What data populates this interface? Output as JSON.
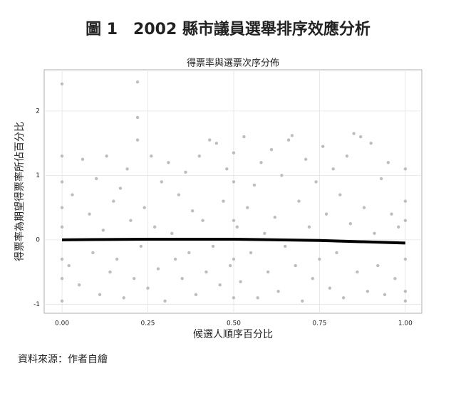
{
  "chart_data": {
    "type": "scatter",
    "title": "圖 1　2002 縣市議員選舉排序效應分析",
    "subtitle": "得票率與選票次序分佈",
    "xlabel": "候選人順序百分比",
    "ylabel": "得票率為期望得票率所佔百分比",
    "source": "資料來源：作者自繪",
    "xlim": [
      -0.052,
      1.048
    ],
    "ylim": [
      -1.14,
      2.64
    ],
    "xticks": [
      {
        "value": 0,
        "label": "0.00"
      },
      {
        "value": 0.25,
        "label": "0.25"
      },
      {
        "value": 0.5,
        "label": "0.50"
      },
      {
        "value": 0.75,
        "label": "0.75"
      },
      {
        "value": 1,
        "label": "1.00"
      }
    ],
    "yticks": [
      -1,
      0,
      1,
      2
    ],
    "grid": true,
    "series": [
      {
        "type": "scatter",
        "color": "#bdbdbd",
        "x": [
          0,
          0,
          0,
          0,
          0,
          0,
          0,
          0,
          0.02,
          0.03,
          0.05,
          0.06,
          0.08,
          0.09,
          0.1,
          0.11,
          0.12,
          0.13,
          0.14,
          0.15,
          0.16,
          0.17,
          0.18,
          0.19,
          0.2,
          0.21,
          0.22,
          0.22,
          0.22,
          0.23,
          0.24,
          0.25,
          0.26,
          0.27,
          0.28,
          0.29,
          0.3,
          0.31,
          0.32,
          0.33,
          0.34,
          0.35,
          0.36,
          0.37,
          0.38,
          0.39,
          0.4,
          0.41,
          0.42,
          0.43,
          0.44,
          0.45,
          0.46,
          0.47,
          0.48,
          0.49,
          0.5,
          0.5,
          0.5,
          0.5,
          0.5,
          0.51,
          0.52,
          0.53,
          0.54,
          0.55,
          0.56,
          0.57,
          0.58,
          0.59,
          0.6,
          0.61,
          0.62,
          0.63,
          0.64,
          0.65,
          0.66,
          0.67,
          0.68,
          0.69,
          0.7,
          0.71,
          0.72,
          0.73,
          0.74,
          0.75,
          0.76,
          0.77,
          0.78,
          0.79,
          0.8,
          0.81,
          0.82,
          0.83,
          0.84,
          0.85,
          0.86,
          0.87,
          0.88,
          0.89,
          0.9,
          0.91,
          0.92,
          0.93,
          0.94,
          0.95,
          0.96,
          0.97,
          0.98,
          1,
          1,
          1,
          1,
          1,
          1
        ],
        "values": [
          2.42,
          1.3,
          0.9,
          0.5,
          -0.3,
          -0.6,
          -0.95,
          0.2,
          -0.4,
          0.7,
          -0.7,
          1.25,
          0.4,
          -0.2,
          0.95,
          -0.85,
          0.15,
          1.3,
          -0.5,
          0.6,
          -0.3,
          0.8,
          -0.9,
          1.1,
          0.3,
          -0.6,
          2.45,
          1.9,
          1.55,
          -0.1,
          0.5,
          -0.75,
          1.3,
          0.2,
          -0.45,
          0.9,
          -0.95,
          1.2,
          0.1,
          -0.3,
          0.7,
          -0.6,
          1.05,
          -0.2,
          0.45,
          -0.85,
          1.3,
          0.3,
          -0.5,
          1.55,
          -0.1,
          1.5,
          -0.7,
          0.6,
          1.1,
          -0.4,
          0.9,
          -0.9,
          0.3,
          -0.3,
          1.35,
          0.2,
          -0.65,
          1.6,
          0.5,
          -0.2,
          0.85,
          -0.9,
          1.2,
          0.1,
          -0.5,
          1.4,
          0.35,
          -0.8,
          1.0,
          -0.1,
          1.55,
          1.62,
          -0.4,
          0.6,
          -0.95,
          1.25,
          0.2,
          -0.6,
          0.9,
          -0.3,
          1.45,
          0.4,
          -0.75,
          1.1,
          -0.2,
          0.7,
          -0.9,
          1.3,
          0.25,
          1.65,
          -0.5,
          1.6,
          0.5,
          -0.8,
          1.5,
          0.1,
          -0.4,
          0.95,
          -0.85,
          1.2,
          0.4,
          -0.6,
          0.2,
          1.1,
          0.6,
          -0.3,
          -0.8,
          0.3,
          -0.95
        ]
      },
      {
        "type": "line",
        "color": "#000000",
        "x": [
          0,
          0.25,
          0.5,
          0.75,
          1
        ],
        "values": [
          0.0,
          0.01,
          0.01,
          -0.01,
          -0.05
        ]
      }
    ]
  }
}
